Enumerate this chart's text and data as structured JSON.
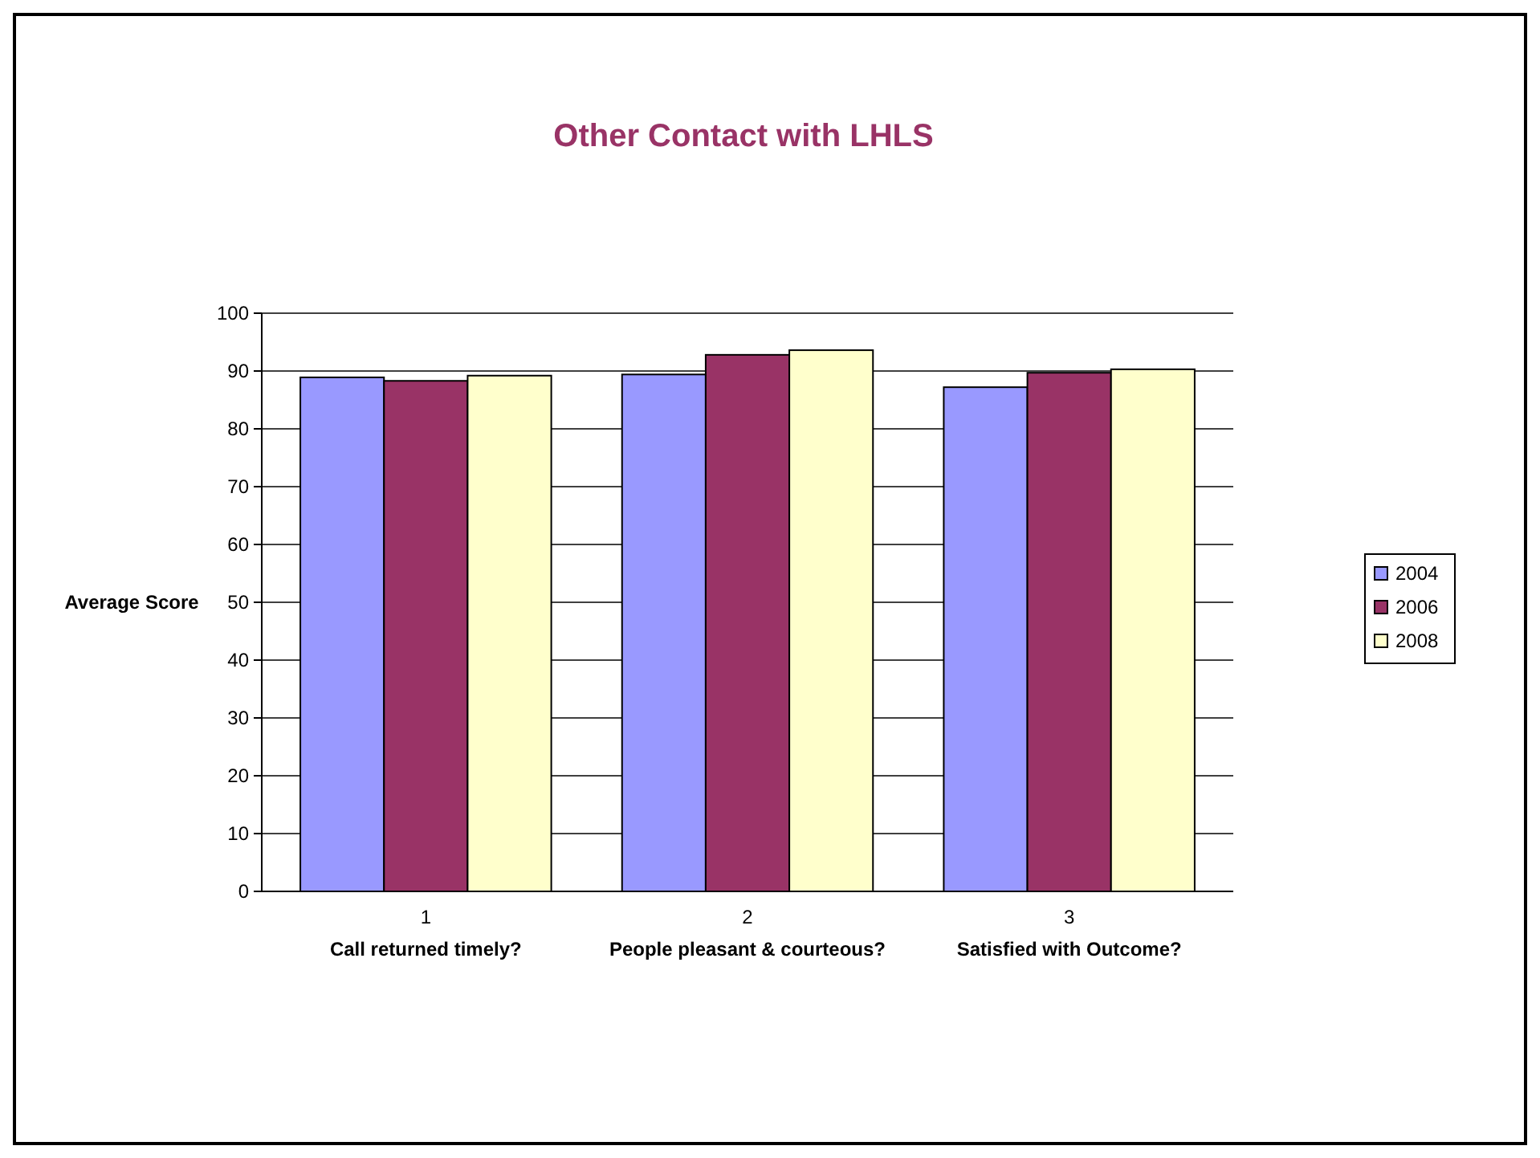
{
  "chart_data": {
    "type": "bar",
    "title": "Other Contact with LHLS",
    "ylabel": "Average Score",
    "categories": [
      "1\nCall returned timely?",
      "2\nPeople pleasant & courteous?",
      "3\nSatisfied with Outcome?"
    ],
    "series": [
      {
        "name": "2004",
        "color": "#9999ff",
        "values": [
          88.9,
          89.4,
          87.2
        ]
      },
      {
        "name": "2006",
        "color": "#993366",
        "values": [
          88.3,
          92.8,
          89.7
        ]
      },
      {
        "name": "2008",
        "color": "#ffffcc",
        "values": [
          89.2,
          93.6,
          90.3
        ]
      }
    ],
    "ylim": [
      0,
      100
    ],
    "yticks": [
      0,
      10,
      20,
      30,
      40,
      50,
      60,
      70,
      80,
      90,
      100
    ],
    "grid": "y",
    "legend": "right"
  }
}
